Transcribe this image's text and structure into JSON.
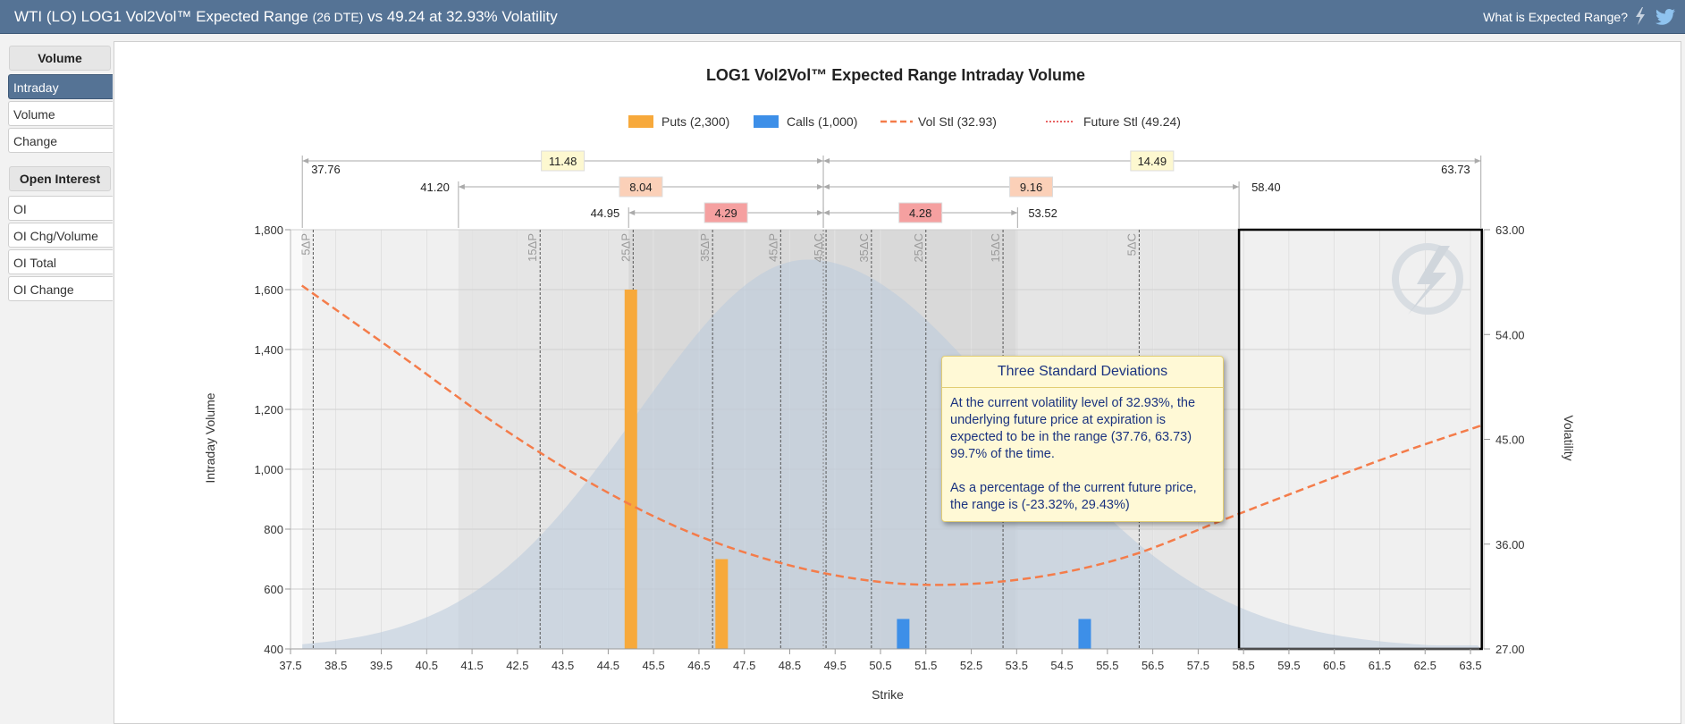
{
  "header": {
    "title_main": "WTI (LO) LOG1 Vol2Vol™ Expected Range",
    "title_dte": "(26 DTE)",
    "title_rest": "vs 49.24 at 32.93% Volatility",
    "help_link": "What is Expected Range?",
    "icons": [
      "lightning-icon",
      "twitter-icon"
    ]
  },
  "sidebar": {
    "volume_section": "Volume",
    "volume_items": [
      {
        "label": "Intraday",
        "active": true
      },
      {
        "label": "Volume",
        "active": false
      },
      {
        "label": "Change",
        "active": false
      }
    ],
    "oi_section": "Open Interest",
    "oi_items": [
      {
        "label": "OI"
      },
      {
        "label": "OI Chg/Volume"
      },
      {
        "label": "OI Total"
      },
      {
        "label": "OI Change"
      }
    ]
  },
  "chart_data": {
    "type": "bar",
    "title": "LOG1 Vol2Vol™ Expected Range Intraday Volume",
    "xlabel": "Strike",
    "ylabel": "Intraday Volume",
    "y2label": "Volatility",
    "ylim": [
      400,
      1800
    ],
    "y2lim": [
      27,
      63
    ],
    "xlim": [
      37.5,
      63.5
    ],
    "x_ticks": [
      "37.5",
      "38.5",
      "39.5",
      "40.5",
      "41.5",
      "42.5",
      "43.5",
      "44.5",
      "45.5",
      "46.5",
      "47.5",
      "48.5",
      "49.5",
      "50.5",
      "51.5",
      "52.5",
      "53.5",
      "54.5",
      "55.5",
      "56.5",
      "57.5",
      "58.5",
      "59.5",
      "60.5",
      "61.5",
      "62.5",
      "63.5"
    ],
    "y_ticks": [
      "400",
      "600",
      "800",
      "1,000",
      "1,200",
      "1,400",
      "1,600",
      "1,800"
    ],
    "y2_ticks": [
      "27.00",
      "36.00",
      "45.00",
      "54.00",
      "63.00"
    ],
    "legend": [
      {
        "label": "Puts (2,300)",
        "color": "#f7a93b",
        "kind": "box"
      },
      {
        "label": "Calls (1,000)",
        "color": "#3d8fe8",
        "kind": "box"
      },
      {
        "label": "Vol Stl (32.93)",
        "color": "#f47c4a",
        "kind": "dash"
      },
      {
        "label": "Future Stl (49.24)",
        "color": "#e03030",
        "kind": "dots"
      }
    ],
    "series": [
      {
        "name": "Puts",
        "color": "#f7a93b",
        "points": [
          {
            "x": 45.0,
            "y": 1600
          },
          {
            "x": 47.0,
            "y": 700
          }
        ]
      },
      {
        "name": "Calls",
        "color": "#3d8fe8",
        "points": [
          {
            "x": 51.0,
            "y": 500
          },
          {
            "x": 55.0,
            "y": 500
          }
        ]
      }
    ],
    "vol_curve": [
      [
        37.75,
        58.2
      ],
      [
        40,
        52.0
      ],
      [
        42,
        46.4
      ],
      [
        44,
        41.5
      ],
      [
        46,
        37.5
      ],
      [
        48,
        34.7
      ],
      [
        50,
        33.0
      ],
      [
        51.9,
        32.5
      ],
      [
        54,
        33.2
      ],
      [
        56,
        35.0
      ],
      [
        58,
        38.0
      ],
      [
        60,
        41.0
      ],
      [
        62,
        43.9
      ],
      [
        63.75,
        46.2
      ]
    ],
    "distribution": {
      "peak_x": 48.9,
      "peak_y": 1680,
      "sigma_left": 3.75,
      "sigma_right": 4.5,
      "color": "#b9cbdc"
    },
    "delta_lines": [
      {
        "label": "5ΔP",
        "x": 38.0
      },
      {
        "label": "15ΔP",
        "x": 43.0
      },
      {
        "label": "25ΔP",
        "x": 45.05
      },
      {
        "label": "35ΔP",
        "x": 46.8
      },
      {
        "label": "45ΔP",
        "x": 48.3
      },
      {
        "label": "45ΔC",
        "x": 49.3
      },
      {
        "label": "35ΔC",
        "x": 50.3
      },
      {
        "label": "25ΔC",
        "x": 51.5
      },
      {
        "label": "15ΔC",
        "x": 53.2
      },
      {
        "label": "5ΔC",
        "x": 56.2
      }
    ],
    "ranges": [
      {
        "name": "3sd",
        "low": "37.76",
        "high": "63.73",
        "left_width": "11.48",
        "right_width": "14.49",
        "label_color": "#fdf8d0"
      },
      {
        "name": "2sd",
        "low": "41.20",
        "high": "58.40",
        "left_width": "8.04",
        "right_width": "9.16",
        "label_color": "#fbd0b8"
      },
      {
        "name": "1sd",
        "low": "44.95",
        "high": "53.52",
        "left_width": "4.29",
        "right_width": "4.28",
        "label_color": "#f5a0a0"
      }
    ],
    "future": 49.24,
    "highlight_box": {
      "low": 58.4,
      "high": 63.75
    }
  },
  "tooltip": {
    "title": "Three Standard Deviations",
    "line1": "At the current volatility level of 32.93%, the underlying future price at expiration is expected to be in the range (37.76, 63.73) 99.7% of the time.",
    "line2": "As a percentage of the current future price, the range is (-23.32%, 29.43%)"
  }
}
